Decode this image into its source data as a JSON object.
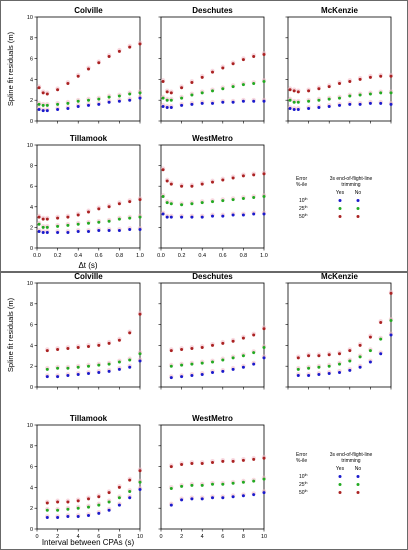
{
  "figure": {
    "top": {
      "ylabel": "Spline fit residuals (m)",
      "xlabel": "Δt (s)",
      "legend": {
        "title_left": "Error\n%-ile",
        "title_right": "3s end-of-flight-line\ntrimming",
        "col_yes": "Yes",
        "col_no": "No",
        "rows": [
          "10",
          "25",
          "50"
        ],
        "row_suffix": "th"
      }
    },
    "bottom": {
      "ylabel": "Spline fit residuals (m)",
      "xlabel": "Interval between CPAs (s)",
      "legend": {
        "title_left": "Error\n%-ile",
        "title_right": "3s end-of-flight-line\ntrimming",
        "col_yes": "Yes",
        "col_no": "No",
        "rows": [
          "10",
          "25",
          "50"
        ],
        "row_suffix": "th"
      }
    }
  },
  "colors": {
    "p10": "#1a1acc",
    "p25": "#22aa22",
    "p50": "#aa2222",
    "trim_yes_light": "#f3b8c4"
  },
  "chart_data": [
    {
      "type": "scatter",
      "title": "Colville",
      "ylabel": "Spline fit residuals (m)",
      "xlim": [
        0,
        1
      ],
      "ylim": [
        0,
        10
      ],
      "xticks": [
        0.0,
        0.2,
        0.4,
        0.6,
        0.8,
        1.0
      ],
      "yticks": [
        0,
        2,
        4,
        6,
        8,
        10
      ],
      "series": [
        {
          "name": "10th",
          "x": [
            0.02,
            0.06,
            0.1,
            0.2,
            0.3,
            0.4,
            0.5,
            0.6,
            0.7,
            0.8,
            0.9,
            1.0
          ],
          "values": [
            1.1,
            1.0,
            1.0,
            1.1,
            1.2,
            1.4,
            1.5,
            1.6,
            1.8,
            1.9,
            2.0,
            2.2
          ]
        },
        {
          "name": "25th",
          "x": [
            0.02,
            0.06,
            0.1,
            0.2,
            0.3,
            0.4,
            0.5,
            0.6,
            0.7,
            0.8,
            0.9,
            1.0
          ],
          "values": [
            1.6,
            1.5,
            1.5,
            1.6,
            1.7,
            1.9,
            2.0,
            2.1,
            2.3,
            2.4,
            2.6,
            2.7
          ]
        },
        {
          "name": "50th",
          "x": [
            0.02,
            0.06,
            0.1,
            0.2,
            0.3,
            0.4,
            0.5,
            0.6,
            0.7,
            0.8,
            0.9,
            1.0
          ],
          "values": [
            3.2,
            2.7,
            2.6,
            3.0,
            3.6,
            4.3,
            5.0,
            5.6,
            6.2,
            6.7,
            7.1,
            7.4
          ]
        }
      ]
    },
    {
      "type": "scatter",
      "title": "Deschutes",
      "xlim": [
        0,
        1
      ],
      "ylim": [
        0,
        10
      ],
      "series": [
        {
          "name": "10th",
          "x": [
            0.02,
            0.06,
            0.1,
            0.2,
            0.3,
            0.4,
            0.5,
            0.6,
            0.7,
            0.8,
            0.9,
            1.0
          ],
          "values": [
            1.4,
            1.3,
            1.3,
            1.5,
            1.6,
            1.7,
            1.7,
            1.8,
            1.8,
            1.9,
            1.9,
            1.9
          ]
        },
        {
          "name": "25th",
          "x": [
            0.02,
            0.06,
            0.1,
            0.2,
            0.3,
            0.4,
            0.5,
            0.6,
            0.7,
            0.8,
            0.9,
            1.0
          ],
          "values": [
            2.2,
            2.0,
            2.0,
            2.2,
            2.5,
            2.7,
            2.9,
            3.1,
            3.3,
            3.5,
            3.6,
            3.8
          ]
        },
        {
          "name": "50th",
          "x": [
            0.02,
            0.06,
            0.1,
            0.2,
            0.3,
            0.4,
            0.5,
            0.6,
            0.7,
            0.8,
            0.9,
            1.0
          ],
          "values": [
            3.8,
            2.8,
            2.7,
            3.2,
            3.7,
            4.2,
            4.7,
            5.1,
            5.5,
            5.9,
            6.2,
            6.4
          ]
        }
      ]
    },
    {
      "type": "scatter",
      "title": "McKenzie",
      "xlim": [
        0,
        1
      ],
      "ylim": [
        0,
        10
      ],
      "series": [
        {
          "name": "10th",
          "x": [
            0.02,
            0.06,
            0.1,
            0.2,
            0.3,
            0.4,
            0.5,
            0.6,
            0.7,
            0.8,
            0.9,
            1.0
          ],
          "values": [
            1.2,
            1.1,
            1.1,
            1.2,
            1.3,
            1.4,
            1.5,
            1.6,
            1.6,
            1.7,
            1.7,
            1.6
          ]
        },
        {
          "name": "25th",
          "x": [
            0.02,
            0.06,
            0.1,
            0.2,
            0.3,
            0.4,
            0.5,
            0.6,
            0.7,
            0.8,
            0.9,
            1.0
          ],
          "values": [
            2.0,
            1.8,
            1.8,
            1.9,
            2.0,
            2.1,
            2.2,
            2.4,
            2.5,
            2.6,
            2.7,
            2.7
          ]
        },
        {
          "name": "50th",
          "x": [
            0.02,
            0.06,
            0.1,
            0.2,
            0.3,
            0.4,
            0.5,
            0.6,
            0.7,
            0.8,
            0.9,
            1.0
          ],
          "values": [
            3.0,
            2.9,
            2.8,
            2.9,
            3.1,
            3.3,
            3.6,
            3.8,
            4.0,
            4.2,
            4.3,
            4.3
          ]
        }
      ]
    },
    {
      "type": "scatter",
      "title": "Tillamook",
      "ylabel": "Spline fit residuals (m)",
      "xlabel": "Δt (s)",
      "xlim": [
        0,
        1
      ],
      "ylim": [
        0,
        10
      ],
      "series": [
        {
          "name": "10th",
          "x": [
            0.02,
            0.06,
            0.1,
            0.2,
            0.3,
            0.4,
            0.5,
            0.6,
            0.7,
            0.8,
            0.9,
            1.0
          ],
          "values": [
            1.6,
            1.5,
            1.5,
            1.5,
            1.5,
            1.6,
            1.6,
            1.7,
            1.7,
            1.7,
            1.8,
            1.8
          ]
        },
        {
          "name": "25th",
          "x": [
            0.02,
            0.06,
            0.1,
            0.2,
            0.3,
            0.4,
            0.5,
            0.6,
            0.7,
            0.8,
            0.9,
            1.0
          ],
          "values": [
            2.3,
            2.0,
            2.0,
            2.1,
            2.2,
            2.3,
            2.4,
            2.5,
            2.6,
            2.8,
            2.9,
            3.0
          ]
        },
        {
          "name": "50th",
          "x": [
            0.02,
            0.06,
            0.1,
            0.2,
            0.3,
            0.4,
            0.5,
            0.6,
            0.7,
            0.8,
            0.9,
            1.0
          ],
          "values": [
            3.0,
            2.8,
            2.8,
            2.9,
            3.0,
            3.2,
            3.5,
            3.8,
            4.0,
            4.3,
            4.5,
            4.7
          ]
        }
      ]
    },
    {
      "type": "scatter",
      "title": "WestMetro",
      "xlabel": "Δt (s)",
      "xlim": [
        0,
        1
      ],
      "ylim": [
        0,
        10
      ],
      "series": [
        {
          "name": "10th",
          "x": [
            0.02,
            0.06,
            0.1,
            0.2,
            0.3,
            0.4,
            0.5,
            0.6,
            0.7,
            0.8,
            0.9,
            1.0
          ],
          "values": [
            3.3,
            3.0,
            3.0,
            3.0,
            3.0,
            3.0,
            3.1,
            3.1,
            3.2,
            3.2,
            3.3,
            3.3
          ]
        },
        {
          "name": "25th",
          "x": [
            0.02,
            0.06,
            0.1,
            0.2,
            0.3,
            0.4,
            0.5,
            0.6,
            0.7,
            0.8,
            0.9,
            1.0
          ],
          "values": [
            5.0,
            4.4,
            4.3,
            4.2,
            4.3,
            4.4,
            4.5,
            4.6,
            4.7,
            4.8,
            4.9,
            5.0
          ]
        },
        {
          "name": "50th",
          "x": [
            0.02,
            0.06,
            0.1,
            0.2,
            0.3,
            0.4,
            0.5,
            0.6,
            0.7,
            0.8,
            0.9,
            1.0
          ],
          "values": [
            7.6,
            6.5,
            6.2,
            6.0,
            6.0,
            6.2,
            6.4,
            6.6,
            6.8,
            7.0,
            7.1,
            7.2
          ]
        }
      ]
    },
    {
      "type": "scatter",
      "title": "Colville",
      "ylabel": "Spline fit residuals (m)",
      "xlim": [
        0,
        10
      ],
      "ylim": [
        0,
        10
      ],
      "xticks": [
        0,
        2,
        4,
        6,
        8,
        10
      ],
      "yticks": [
        0,
        2,
        4,
        6,
        8,
        10
      ],
      "series": [
        {
          "name": "10th",
          "x": [
            1,
            2,
            3,
            4,
            5,
            6,
            7,
            8,
            9,
            10
          ],
          "values": [
            1.0,
            1.0,
            1.1,
            1.2,
            1.3,
            1.4,
            1.5,
            1.7,
            1.9,
            2.5
          ]
        },
        {
          "name": "25th",
          "x": [
            1,
            2,
            3,
            4,
            5,
            6,
            7,
            8,
            9,
            10
          ],
          "values": [
            1.7,
            1.8,
            1.8,
            1.9,
            2.0,
            2.1,
            2.2,
            2.4,
            2.6,
            3.2
          ]
        },
        {
          "name": "50th",
          "x": [
            1,
            2,
            3,
            4,
            5,
            6,
            7,
            8,
            9,
            10
          ],
          "values": [
            3.5,
            3.6,
            3.7,
            3.8,
            3.9,
            4.0,
            4.2,
            4.5,
            5.2,
            7.0
          ]
        }
      ]
    },
    {
      "type": "scatter",
      "title": "Deschutes",
      "xlim": [
        0,
        10
      ],
      "ylim": [
        0,
        10
      ],
      "series": [
        {
          "name": "10th",
          "x": [
            1,
            2,
            3,
            4,
            5,
            6,
            7,
            8,
            9,
            10
          ],
          "values": [
            0.9,
            1.0,
            1.1,
            1.2,
            1.4,
            1.5,
            1.7,
            1.9,
            2.2,
            2.8
          ]
        },
        {
          "name": "25th",
          "x": [
            1,
            2,
            3,
            4,
            5,
            6,
            7,
            8,
            9,
            10
          ],
          "values": [
            2.0,
            2.1,
            2.2,
            2.3,
            2.4,
            2.6,
            2.8,
            3.0,
            3.3,
            3.8
          ]
        },
        {
          "name": "50th",
          "x": [
            1,
            2,
            3,
            4,
            5,
            6,
            7,
            8,
            9,
            10
          ],
          "values": [
            3.5,
            3.6,
            3.7,
            3.8,
            4.0,
            4.2,
            4.4,
            4.7,
            5.0,
            5.6
          ]
        }
      ]
    },
    {
      "type": "scatter",
      "title": "McKenzie",
      "xlim": [
        0,
        10
      ],
      "ylim": [
        0,
        10
      ],
      "series": [
        {
          "name": "10th",
          "x": [
            1,
            2,
            3,
            4,
            5,
            6,
            7,
            8,
            9,
            10
          ],
          "values": [
            1.1,
            1.1,
            1.2,
            1.3,
            1.4,
            1.6,
            1.9,
            2.4,
            3.2,
            5.0
          ]
        },
        {
          "name": "25th",
          "x": [
            1,
            2,
            3,
            4,
            5,
            6,
            7,
            8,
            9,
            10
          ],
          "values": [
            1.7,
            1.8,
            1.9,
            2.0,
            2.2,
            2.5,
            2.9,
            3.5,
            4.6,
            6.4
          ]
        },
        {
          "name": "50th",
          "x": [
            1,
            2,
            3,
            4,
            5,
            6,
            7,
            8,
            9,
            10
          ],
          "values": [
            2.8,
            3.0,
            3.0,
            3.1,
            3.2,
            3.5,
            4.0,
            4.8,
            6.2,
            9.0
          ]
        }
      ]
    },
    {
      "type": "scatter",
      "title": "Tillamook",
      "ylabel": "Spline fit residuals (m)",
      "xlabel": "Interval between CPAs (s)",
      "xlim": [
        0,
        10
      ],
      "ylim": [
        0,
        10
      ],
      "series": [
        {
          "name": "10th",
          "x": [
            1,
            2,
            3,
            4,
            5,
            6,
            7,
            8,
            9,
            10
          ],
          "values": [
            1.1,
            1.1,
            1.2,
            1.2,
            1.3,
            1.5,
            1.8,
            2.3,
            3.0,
            3.8
          ]
        },
        {
          "name": "25th",
          "x": [
            1,
            2,
            3,
            4,
            5,
            6,
            7,
            8,
            9,
            10
          ],
          "values": [
            1.8,
            1.8,
            1.9,
            2.0,
            2.1,
            2.3,
            2.6,
            3.0,
            3.6,
            4.5
          ]
        },
        {
          "name": "50th",
          "x": [
            1,
            2,
            3,
            4,
            5,
            6,
            7,
            8,
            9,
            10
          ],
          "values": [
            2.5,
            2.6,
            2.6,
            2.7,
            2.9,
            3.1,
            3.5,
            4.0,
            4.7,
            5.6
          ]
        }
      ]
    },
    {
      "type": "scatter",
      "title": "WestMetro",
      "xlabel": "Interval between CPAs (s)",
      "xlim": [
        0,
        10
      ],
      "ylim": [
        0,
        10
      ],
      "series": [
        {
          "name": "10th",
          "x": [
            1,
            2,
            3,
            4,
            5,
            6,
            7,
            8,
            9,
            10
          ],
          "values": [
            2.3,
            2.8,
            2.9,
            2.9,
            3.0,
            3.0,
            3.1,
            3.2,
            3.3,
            3.5
          ]
        },
        {
          "name": "25th",
          "x": [
            1,
            2,
            3,
            4,
            5,
            6,
            7,
            8,
            9,
            10
          ],
          "values": [
            3.9,
            4.1,
            4.2,
            4.2,
            4.3,
            4.3,
            4.4,
            4.5,
            4.6,
            4.8
          ]
        },
        {
          "name": "50th",
          "x": [
            1,
            2,
            3,
            4,
            5,
            6,
            7,
            8,
            9,
            10
          ],
          "values": [
            6.0,
            6.2,
            6.3,
            6.3,
            6.4,
            6.5,
            6.5,
            6.6,
            6.7,
            6.8
          ]
        }
      ]
    }
  ]
}
